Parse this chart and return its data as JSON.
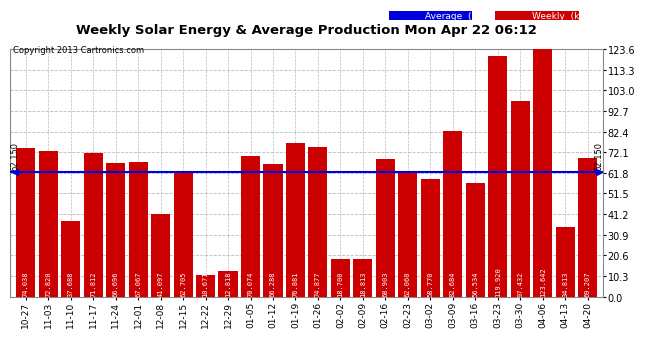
{
  "title": "Weekly Solar Energy & Average Production Mon Apr 22 06:12",
  "copyright": "Copyright 2013 Cartronics.com",
  "categories": [
    "10-27",
    "11-03",
    "11-10",
    "11-17",
    "11-24",
    "12-01",
    "12-08",
    "12-15",
    "12-22",
    "12-29",
    "01-05",
    "01-12",
    "01-19",
    "01-26",
    "02-02",
    "02-09",
    "02-16",
    "02-23",
    "03-02",
    "03-09",
    "03-16",
    "03-23",
    "03-30",
    "04-06",
    "04-13",
    "04-20"
  ],
  "values": [
    74.038,
    72.82,
    37.688,
    71.812,
    66.696,
    67.067,
    41.097,
    62.705,
    10.671,
    12.818,
    70.074,
    66.288,
    76.881,
    74.877,
    18.7,
    18.813,
    68.903,
    62.06,
    58.77,
    82.684,
    56.534,
    119.92,
    97.432,
    123.642,
    34.813,
    69.207
  ],
  "average": 62.15,
  "bar_color": "#cc0000",
  "average_color": "#0000dd",
  "background_color": "#ffffff",
  "grid_color": "#bbbbbb",
  "ylim": [
    0,
    123.6
  ],
  "yticks": [
    0.0,
    10.3,
    20.6,
    30.9,
    41.2,
    51.5,
    61.8,
    72.1,
    82.4,
    92.7,
    103.0,
    113.3,
    123.6
  ],
  "legend_avg_label": "Average  (kWh)",
  "legend_weekly_label": "Weekly  (kWh)",
  "value_fontsize": 5.0,
  "bar_width": 0.85
}
